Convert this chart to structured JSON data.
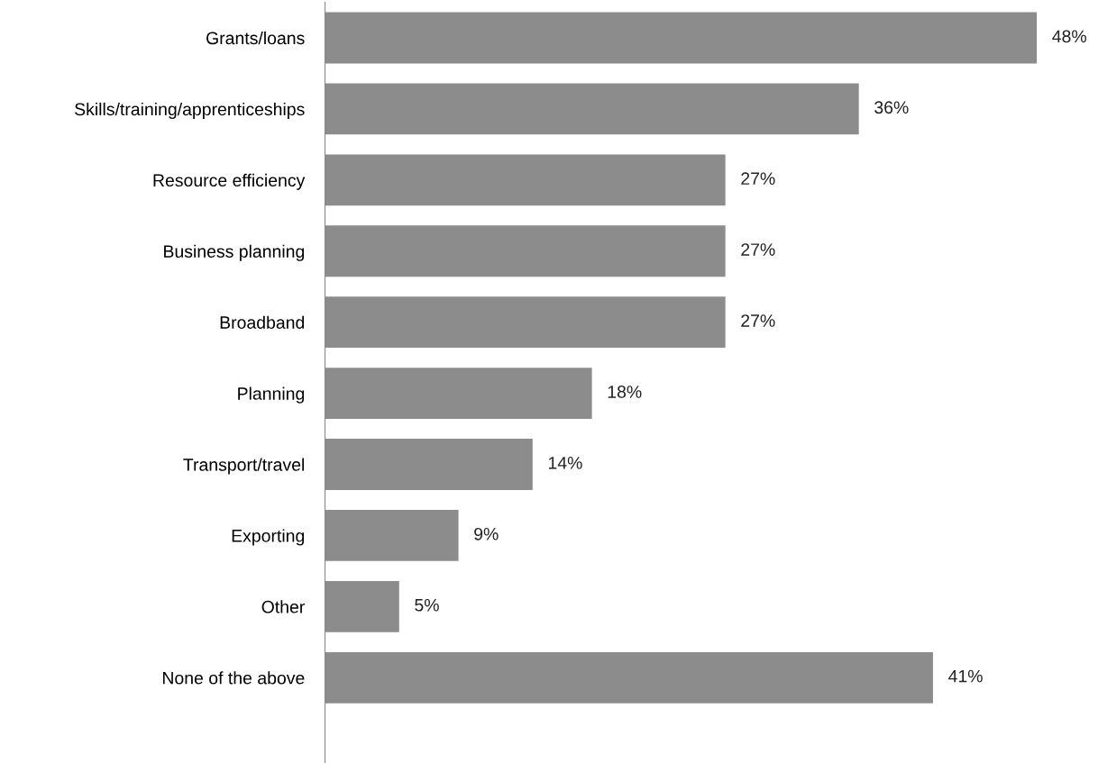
{
  "chart_data": {
    "type": "bar",
    "orientation": "horizontal",
    "categories": [
      "Grants/loans",
      "Skills/training/apprenticeships",
      "Resource efficiency",
      "Business planning",
      "Broadband",
      "Planning",
      "Transport/travel",
      "Exporting",
      "Other",
      "None of the above"
    ],
    "values": [
      48,
      36,
      27,
      27,
      27,
      18,
      14,
      9,
      5,
      41
    ],
    "value_labels": [
      "48%",
      "36%",
      "27%",
      "27%",
      "27%",
      "18%",
      "14%",
      "9%",
      "5%",
      "41%"
    ],
    "color": "#8c8c8c",
    "grid": false,
    "legend": false
  }
}
